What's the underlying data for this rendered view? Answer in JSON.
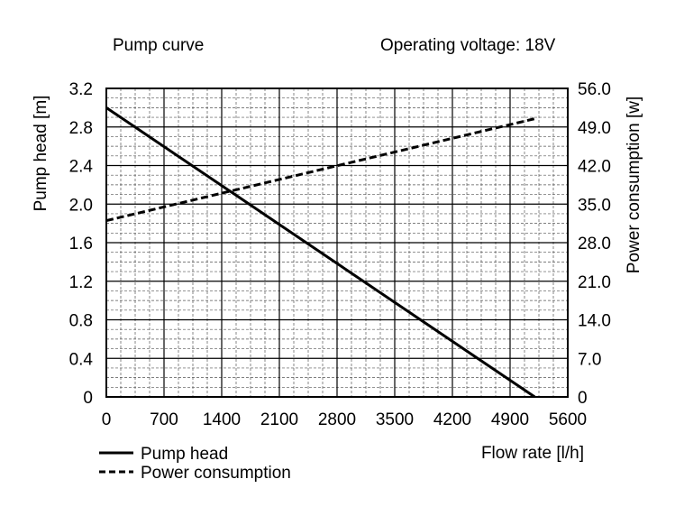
{
  "chart_data": {
    "type": "line",
    "title": "Pump curve",
    "subtitle": "Operating voltage: 18V",
    "xlabel": "Flow rate [l/h]",
    "ylabel_left": "Pump head [m]",
    "ylabel_right": "Power consumption [w]",
    "xlim": [
      0,
      5600
    ],
    "ylim_left": [
      0,
      3.2
    ],
    "ylim_right": [
      0,
      56.0
    ],
    "x_ticks": [
      "0",
      "700",
      "1400",
      "2100",
      "2800",
      "3500",
      "4200",
      "4900",
      "5600"
    ],
    "y_left_ticks": [
      "0",
      "0.4",
      "0.8",
      "1.2",
      "1.6",
      "2.0",
      "2.4",
      "2.8",
      "3.2"
    ],
    "y_right_ticks": [
      "0",
      "7.0",
      "14.0",
      "21.0",
      "28.0",
      "35.0",
      "42.0",
      "49.0",
      "56.0"
    ],
    "grid": true,
    "legend_position": "bottom-left",
    "series": [
      {
        "name": "Pump head",
        "axis": "left",
        "style": "solid",
        "x": [
          0,
          5200
        ],
        "y": [
          3.0,
          0
        ]
      },
      {
        "name": "Power consumption",
        "axis": "right",
        "style": "dashed",
        "x": [
          0,
          5200
        ],
        "y": [
          32.0,
          50.5
        ]
      }
    ]
  }
}
